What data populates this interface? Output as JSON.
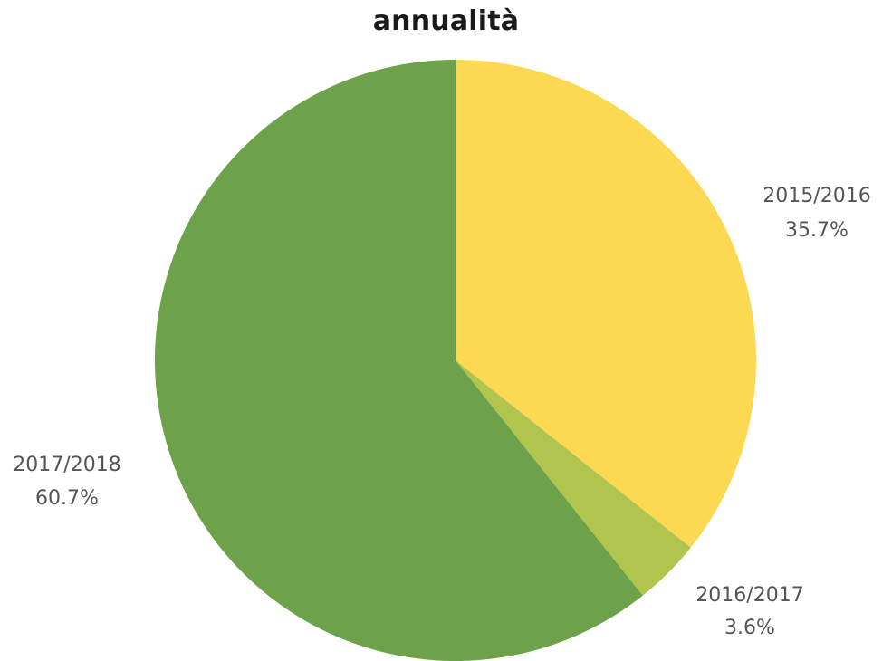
{
  "chart_data": {
    "type": "pie",
    "title": "annualità",
    "slices": [
      {
        "label": "2015/2016",
        "value": 35.7,
        "percent_label": "35.7%",
        "color": "#FDD853"
      },
      {
        "label": "2016/2017",
        "value": 3.6,
        "percent_label": "3.6%",
        "color": "#B1C44E"
      },
      {
        "label": "2017/2018",
        "value": 60.7,
        "percent_label": "60.7%",
        "color": "#6DA24A"
      }
    ],
    "start_angle": "top (12 o'clock)",
    "direction": "clockwise",
    "legend": "none",
    "labels_placement": "outside"
  }
}
